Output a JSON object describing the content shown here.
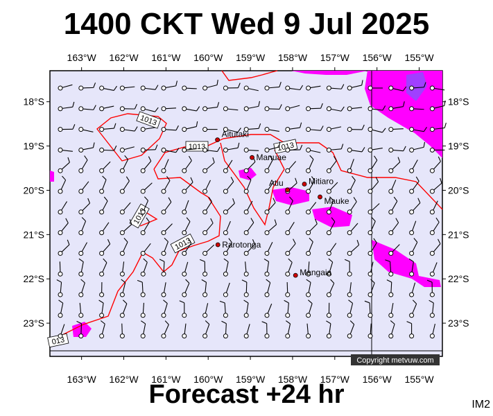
{
  "title": "1400 CKT Wed 9 Jul 2025",
  "footer": "Forecast +24 hr",
  "corner_code": "IM2",
  "copyright": "Copyright metvuw.com",
  "colors": {
    "background": "#e6e6fa",
    "rain": "#ff00ff",
    "rain_heavy": "#a040ff",
    "isobar": "#ff0000",
    "coast": "#000000"
  },
  "longitude_labels": [
    "163°W",
    "162°W",
    "161°W",
    "160°W",
    "159°W",
    "158°W",
    "157°W",
    "156°W",
    "155°W"
  ],
  "latitude_labels": [
    "18°S",
    "19°S",
    "20°S",
    "21°S",
    "22°S",
    "23°S"
  ],
  "isobars": [
    {
      "label": "1013",
      "value": 1013
    }
  ],
  "places": [
    {
      "name": "Aitutaki",
      "lon": -159.78,
      "lat": -18.86
    },
    {
      "name": "Manuae",
      "lon": -158.96,
      "lat": -19.26
    },
    {
      "name": "Mitiaro",
      "lon": -157.72,
      "lat": -19.86
    },
    {
      "name": "Atiu",
      "lon": -158.12,
      "lat": -19.99
    },
    {
      "name": "Mauke",
      "lon": -157.35,
      "lat": -20.15
    },
    {
      "name": "Rarotonga",
      "lon": -159.77,
      "lat": -21.23
    },
    {
      "name": "Mangaia",
      "lon": -157.93,
      "lat": -21.92
    }
  ],
  "map_extent": {
    "lon_min": -163.75,
    "lon_max": -154.45,
    "lat_min": -23.75,
    "lat_max": -17.3
  },
  "wind_field_note": "Wind barbs on a regular grid, light winds mostly from the southeast."
}
